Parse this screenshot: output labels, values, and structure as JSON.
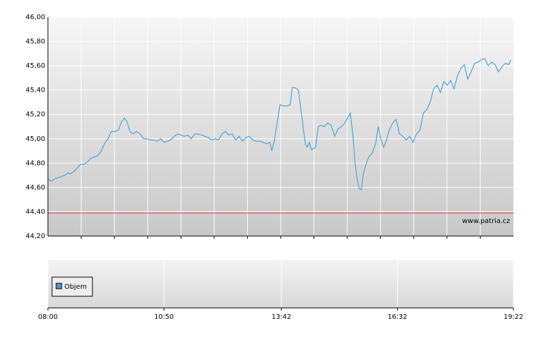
{
  "chart_data": {
    "type": "line",
    "x": [
      480,
      485,
      490,
      495,
      500,
      505,
      510,
      513,
      518,
      523,
      528,
      533,
      538,
      543,
      548,
      553,
      558,
      563,
      568,
      573,
      578,
      583,
      588,
      592,
      596,
      600,
      605,
      610,
      615,
      620,
      625,
      630,
      635,
      640,
      645,
      650,
      655,
      660,
      665,
      670,
      675,
      680,
      685,
      690,
      695,
      700,
      705,
      710,
      715,
      720,
      725,
      730,
      735,
      740,
      745,
      750,
      755,
      760,
      765,
      770,
      775,
      780,
      785,
      790,
      795,
      800,
      805,
      808,
      812,
      815,
      820,
      825,
      830,
      835,
      838,
      842,
      847,
      852,
      857,
      860,
      863,
      866,
      872,
      876,
      880,
      885,
      890,
      895,
      900,
      905,
      910,
      915,
      919,
      923,
      927,
      930,
      933,
      936,
      939,
      942,
      946,
      950,
      955,
      960,
      964,
      968,
      972,
      976,
      980,
      985,
      990,
      995,
      1000,
      1005,
      1010,
      1015,
      1020,
      1025,
      1030,
      1035,
      1040,
      1045,
      1050,
      1055,
      1060,
      1065,
      1070,
      1075,
      1080,
      1085,
      1090,
      1095,
      1100,
      1105,
      1110,
      1115,
      1120,
      1125,
      1130,
      1135,
      1140,
      1145,
      1150,
      1155,
      1158
    ],
    "series": [
      {
        "color": "#4aa3d8",
        "values": [
          44.67,
          44.65,
          44.67,
          44.68,
          44.69,
          44.7,
          44.72,
          44.71,
          44.73,
          44.76,
          44.79,
          44.79,
          44.81,
          44.84,
          44.85,
          44.86,
          44.9,
          44.96,
          45.0,
          45.06,
          45.06,
          45.07,
          45.14,
          45.17,
          45.14,
          45.06,
          45.04,
          45.06,
          45.04,
          45.0,
          45.0,
          44.99,
          44.99,
          44.98,
          45.0,
          44.97,
          44.98,
          44.99,
          45.02,
          45.04,
          45.03,
          45.02,
          45.03,
          45.0,
          45.04,
          45.04,
          45.03,
          45.02,
          45.01,
          44.99,
          45.0,
          44.99,
          45.04,
          45.06,
          45.03,
          45.04,
          44.99,
          45.02,
          44.98,
          45.01,
          45.02,
          44.99,
          44.98,
          44.98,
          44.97,
          44.96,
          44.97,
          44.9,
          44.99,
          45.1,
          45.28,
          45.27,
          45.27,
          45.28,
          45.42,
          45.42,
          45.4,
          45.18,
          44.96,
          44.93,
          44.97,
          44.91,
          44.93,
          45.1,
          45.11,
          45.1,
          45.13,
          45.11,
          45.02,
          45.08,
          45.1,
          45.13,
          45.17,
          45.21,
          45.02,
          44.79,
          44.67,
          44.59,
          44.58,
          44.71,
          44.79,
          44.85,
          44.88,
          44.96,
          45.1,
          44.99,
          44.93,
          44.99,
          45.07,
          45.13,
          45.16,
          45.04,
          45.02,
          44.99,
          45.02,
          44.97,
          45.04,
          45.07,
          45.21,
          45.24,
          45.3,
          45.41,
          45.44,
          45.38,
          45.47,
          45.44,
          45.48,
          45.41,
          45.52,
          45.58,
          45.61,
          45.49,
          45.55,
          45.62,
          45.63,
          45.65,
          45.66,
          45.6,
          45.63,
          45.61,
          45.55,
          45.59,
          45.62,
          45.61,
          45.65
        ]
      }
    ],
    "reference_line": {
      "value": 44.39,
      "color": "#e0302a"
    },
    "ylim": [
      44.2,
      46.0
    ],
    "yticks": [
      {
        "value": 44.2,
        "label": "44,20"
      },
      {
        "value": 44.4,
        "label": "44,40"
      },
      {
        "value": 44.6,
        "label": "44,60"
      },
      {
        "value": 44.8,
        "label": "44,80"
      },
      {
        "value": 45.0,
        "label": "45,00"
      },
      {
        "value": 45.2,
        "label": "45,20"
      },
      {
        "value": 45.4,
        "label": "45,40"
      },
      {
        "value": 45.6,
        "label": "45,60"
      },
      {
        "value": 45.8,
        "label": "45,80"
      },
      {
        "value": 46.0,
        "label": "46,00"
      }
    ],
    "xlim": [
      480,
      1162
    ],
    "xticks": [
      {
        "value": 480,
        "label": "08:00"
      },
      {
        "value": 650,
        "label": "10:50"
      },
      {
        "value": 822,
        "label": "13:42"
      },
      {
        "value": 992,
        "label": "16:32"
      },
      {
        "value": 1162,
        "label": "19:22"
      }
    ],
    "grid": true,
    "watermark": "www.patria.cz",
    "volume_legend": {
      "label": "Objem",
      "color": "#4a9ad0"
    }
  }
}
